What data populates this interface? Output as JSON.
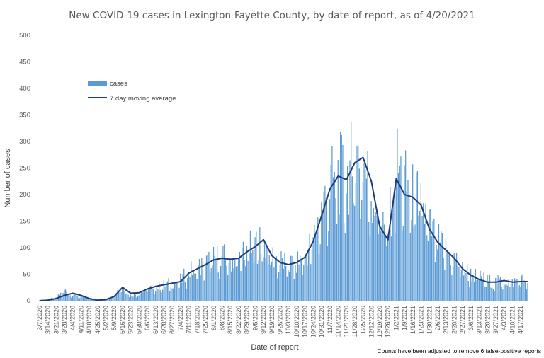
{
  "chart_data": {
    "type": "bar",
    "title": "New COVID-19 cases in Lexington-Fayette County, by date of report, as of 4/20/2021",
    "xlabel": "Date of report",
    "ylabel": "Number of cases",
    "ylim": [
      0,
      500
    ],
    "yticks": [
      0,
      50,
      100,
      150,
      200,
      250,
      300,
      350,
      400,
      450,
      500
    ],
    "grid": false,
    "legend_position": "top-left",
    "note": "Counts have been adjusted to remove 6 false-positive reports",
    "x_tick_labels": [
      "3/7/2020",
      "3/14/2020",
      "3/21/2020",
      "3/28/2020",
      "4/4/2020",
      "4/11/2020",
      "4/18/2020",
      "4/25/2020",
      "5/2/2020",
      "5/9/2020",
      "5/16/2020",
      "5/23/2020",
      "5/30/2020",
      "6/6/2020",
      "6/13/2020",
      "6/20/2020",
      "6/27/2020",
      "7/4/2020",
      "7/11/2020",
      "7/18/2020",
      "7/25/2020",
      "8/1/2020",
      "8/8/2020",
      "8/15/2020",
      "8/22/2020",
      "8/29/2020",
      "9/5/2020",
      "9/12/2020",
      "9/19/2020",
      "9/26/2020",
      "10/3/2020",
      "10/10/2020",
      "10/17/2020",
      "10/24/2020",
      "10/31/2020",
      "11/7/2020",
      "11/14/2020",
      "11/21/2020",
      "11/28/2020",
      "12/5/2020",
      "12/12/2020",
      "12/19/2020",
      "12/26/2020",
      "1/2/2021",
      "1/9/2021",
      "1/16/2021",
      "1/23/2021",
      "1/30/2021",
      "2/6/2021",
      "2/13/2021",
      "2/20/2021",
      "2/27/2021",
      "3/6/2021",
      "3/13/2021",
      "3/20/2021",
      "3/27/2021",
      "4/3/2021",
      "4/10/2021",
      "4/17/2021"
    ],
    "series": [
      {
        "name": "cases",
        "type": "bar",
        "color": "#5B9BD5",
        "weekly_values": [
          1,
          3,
          5,
          20,
          12,
          8,
          3,
          2,
          2,
          12,
          28,
          10,
          14,
          22,
          26,
          30,
          34,
          38,
          55,
          62,
          70,
          78,
          82,
          78,
          80,
          95,
          105,
          110,
          85,
          75,
          68,
          72,
          85,
          115,
          170,
          215,
          240,
          230,
          270,
          265,
          205,
          170,
          120,
          260,
          220,
          195,
          185,
          140,
          110,
          95,
          80,
          62,
          50,
          45,
          38,
          35,
          38,
          35,
          40
        ]
      },
      {
        "name": "7 day moving average",
        "type": "line",
        "color": "#1F3A78",
        "weekly_values": [
          0,
          1,
          4,
          10,
          14,
          10,
          4,
          1,
          2,
          8,
          25,
          14,
          15,
          22,
          27,
          30,
          33,
          36,
          52,
          60,
          68,
          77,
          80,
          78,
          80,
          92,
          102,
          115,
          85,
          72,
          68,
          72,
          82,
          112,
          160,
          210,
          235,
          228,
          260,
          270,
          225,
          140,
          115,
          230,
          200,
          195,
          180,
          135,
          110,
          95,
          80,
          60,
          48,
          40,
          35,
          35,
          38,
          35,
          36
        ]
      }
    ]
  }
}
